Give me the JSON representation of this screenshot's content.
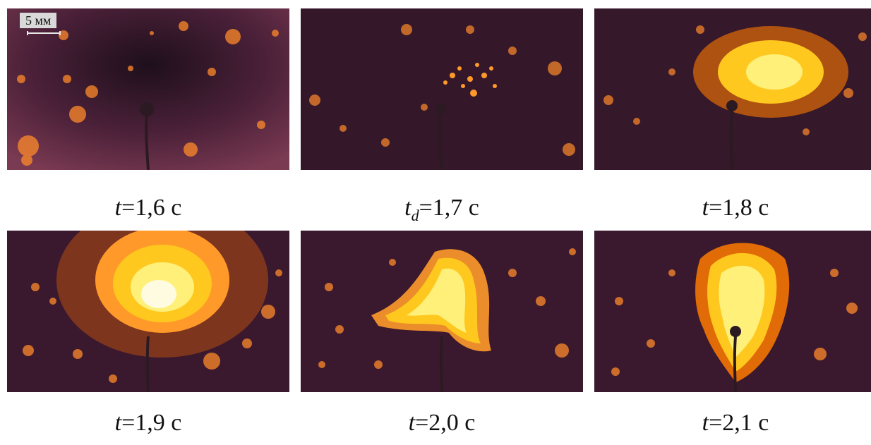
{
  "scale_label": "5 мм",
  "frames": [
    {
      "var": "t",
      "sub": "",
      "value": "=1,6 с",
      "stage": "droplet"
    },
    {
      "var": "t",
      "sub": "d",
      "value": "=1,7 с",
      "stage": "sparks"
    },
    {
      "var": "t",
      "sub": "",
      "value": "=1,8 с",
      "stage": "burst"
    },
    {
      "var": "t",
      "sub": "",
      "value": "=1,9 с",
      "stage": "fireball"
    },
    {
      "var": "t",
      "sub": "",
      "value": "=2,0 с",
      "stage": "spread"
    },
    {
      "var": "t",
      "sub": "",
      "value": "=2,1 с",
      "stage": "plume"
    }
  ],
  "colors": {
    "background_center": "#2a1424",
    "background_edge": "#7a3a52",
    "flame_core": "#fffbe0",
    "flame_mid": "#ffc81e",
    "flame_outer": "#ff6a00",
    "spark": "#ff9a2a"
  }
}
